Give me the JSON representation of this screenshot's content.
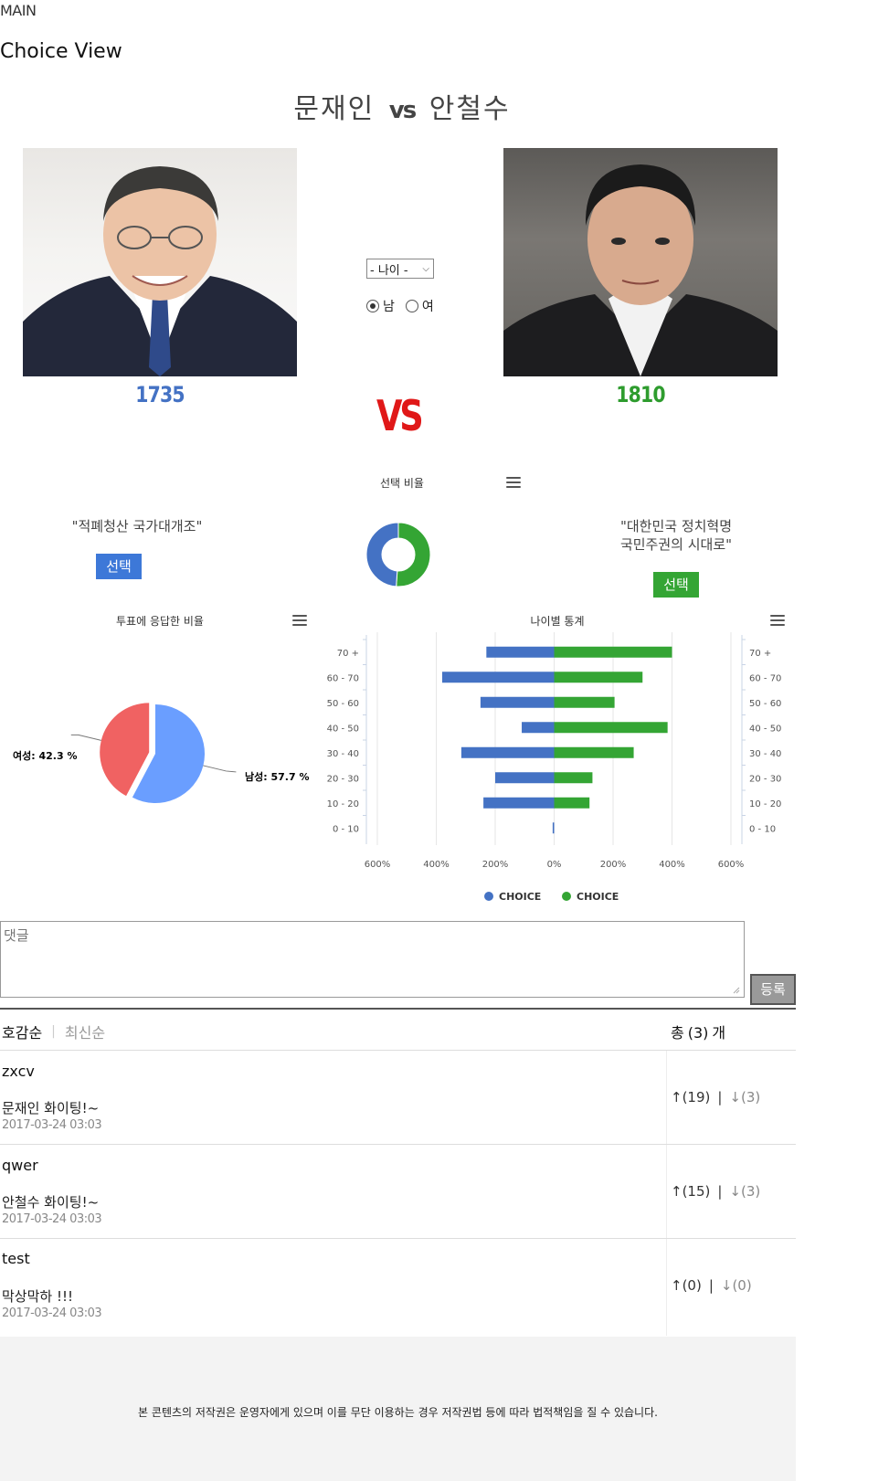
{
  "nav": {
    "main_label": "MAIN"
  },
  "page": {
    "title": "Choice View"
  },
  "matchup": {
    "left_name": "문재인",
    "vs_small": "vs",
    "right_name": "안철수",
    "vs_big": "VS"
  },
  "candidates": {
    "left": {
      "count": "1735",
      "slogan": "\"적폐청산 국가대개조\"",
      "choose_label": "선택",
      "color": "#4472c4"
    },
    "right": {
      "count": "1810",
      "slogan_line1": "\"대한민국 정치혁명",
      "slogan_line2": "국민주권의 시대로\"",
      "choose_label": "선택",
      "color": "#2e9c2e"
    }
  },
  "filters": {
    "age_select_value": "- 나이 -",
    "gender_options": [
      {
        "label": "남",
        "selected": true
      },
      {
        "label": "여",
        "selected": false
      }
    ]
  },
  "charts": {
    "ratio_title": "선택 비율",
    "response_title": "투표에 응답한 비율",
    "age_title": "나이별 통계"
  },
  "chart_data": [
    {
      "type": "pie",
      "variant": "donut",
      "title": "선택 비율",
      "slices": [
        {
          "value": 1735,
          "color": "#4472c4"
        },
        {
          "value": 1810,
          "color": "#34a534"
        }
      ]
    },
    {
      "type": "pie",
      "title": "투표에 응답한 비율",
      "slices": [
        {
          "label": "남성: 57.7 %",
          "value": 57.7,
          "color": "#6a9eff"
        },
        {
          "label": "여성: 42.3 %",
          "value": 42.3,
          "color": "#f06262"
        }
      ]
    },
    {
      "type": "bar",
      "orientation": "horizontal",
      "title": "나이별 통계",
      "categories": [
        "70 +",
        "60 - 70",
        "50 - 60",
        "40 - 50",
        "30 - 40",
        "20 - 30",
        "10 - 20",
        "0 - 10"
      ],
      "x_ticks": [
        "600%",
        "400%",
        "200%",
        "0%",
        "200%",
        "400%",
        "600%"
      ],
      "xlim": [
        -600,
        600
      ],
      "series": [
        {
          "name": "CHOICE",
          "color": "#4472c4",
          "values": [
            -230,
            -380,
            -250,
            -110,
            -315,
            -200,
            -240,
            -5
          ]
        },
        {
          "name": "CHOICE",
          "color": "#34a534",
          "values": [
            400,
            300,
            205,
            385,
            270,
            130,
            120,
            0
          ]
        }
      ],
      "legend": "bottom"
    }
  ],
  "comment_form": {
    "placeholder": "댓글",
    "submit_label": "등록"
  },
  "comments_list": {
    "sort_active": "호감순",
    "sort_inactive": "최신순",
    "total_prefix": "총",
    "total_count": "(3)",
    "total_suffix": "개",
    "items": [
      {
        "user": "zxcv",
        "text": "문재인 화이팅!~",
        "date": "2017-03-24 03:03",
        "up": "↑(19)",
        "down": "↓(3)"
      },
      {
        "user": "qwer",
        "text": "안철수 화이팅!~",
        "date": "2017-03-24 03:03",
        "up": "↑(15)",
        "down": "↓(3)"
      },
      {
        "user": "test",
        "text": "막상막하 !!!",
        "date": "2017-03-24 03:03",
        "up": "↑(0)",
        "down": "↓(0)"
      }
    ]
  },
  "footer": {
    "copyright": "본 콘텐츠의 저작권은 운영자에게 있으며 이를 무단 이용하는 경우 저작권법 등에 따라 법적책임을 질 수 있습니다."
  }
}
